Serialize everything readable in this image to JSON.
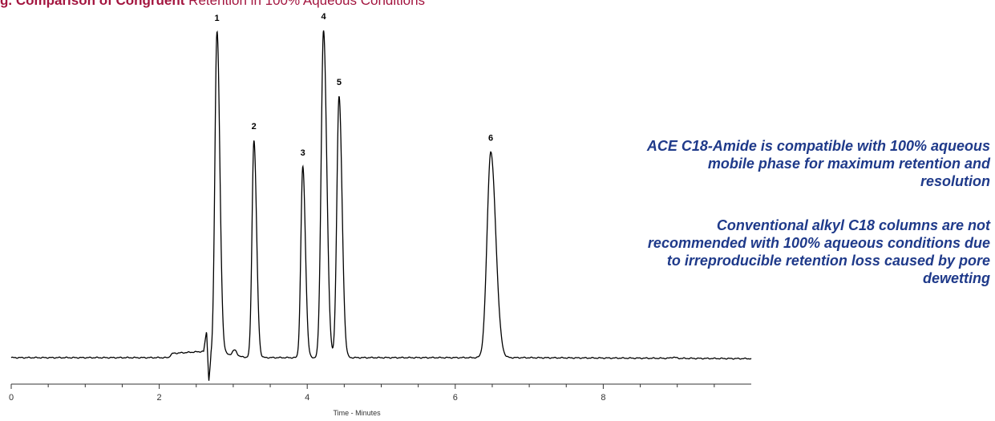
{
  "figure": {
    "title_bold": "g. Comparison of Congruent",
    "title_rest": "Retention in 100% Aqueous Conditions"
  },
  "notes": [
    "ACE C18-Amide is compatible with 100% aqueous mobile phase for maximum retention and resolution",
    "Conventional alkyl C18 columns are not recommended with 100% aqueous conditions due to irreproducible retention loss caused by pore dewetting"
  ],
  "colors": {
    "title": "#a3153f",
    "note_text": "#1f3a8a",
    "trace": "#000000",
    "axis": "#333333"
  },
  "chart_data": {
    "type": "line",
    "title": "",
    "xlabel": "Time - Minutes",
    "ylabel": "",
    "xlim": [
      0,
      10
    ],
    "ylim": [
      0,
      100
    ],
    "x_ticks": [
      0,
      2,
      4,
      6,
      8
    ],
    "x_tick_labels": [
      "0",
      "2",
      "4",
      "6",
      "8"
    ],
    "x_minor_step": 0.5,
    "grid": false,
    "baseline": 0.8,
    "baseline_drift_end": 0.5,
    "disturbance": [
      {
        "x": 2.18,
        "y": 2.1
      },
      {
        "x": 2.6,
        "y": 2.7
      },
      {
        "x": 2.64,
        "y": 9.0
      },
      {
        "x": 2.67,
        "y": -6.5
      },
      {
        "x": 2.7,
        "y": 0.8
      }
    ],
    "peaks": [
      {
        "label": "1",
        "rt": 2.78,
        "height": 100,
        "width": 0.028
      },
      {
        "label": "2",
        "rt": 3.28,
        "height": 67,
        "width": 0.026
      },
      {
        "label": "3",
        "rt": 3.94,
        "height": 59,
        "width": 0.026
      },
      {
        "label": "4",
        "rt": 4.22,
        "height": 100.5,
        "width": 0.032
      },
      {
        "label": "5",
        "rt": 4.43,
        "height": 80.5,
        "width": 0.03
      },
      {
        "label": "6",
        "rt": 6.48,
        "height": 63.5,
        "width": 0.05
      }
    ],
    "minor_bumps": [
      {
        "x": 3.02,
        "y": 1.8
      },
      {
        "x": 8.95,
        "y": 0.35
      }
    ]
  }
}
